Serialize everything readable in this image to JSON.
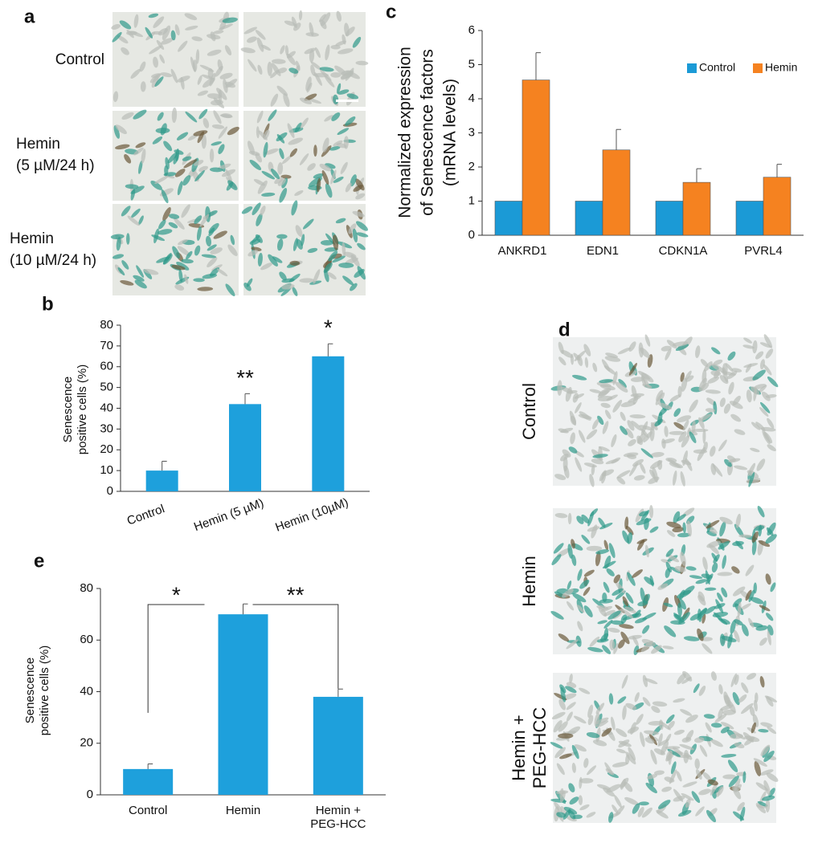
{
  "panel_labels": [
    "a",
    "b",
    "c",
    "d",
    "e"
  ],
  "panel_a": {
    "row_labels": [
      [
        "Control"
      ],
      [
        "Hemin",
        "(5 µM/24 h)"
      ],
      [
        "Hemin",
        "(10 µM/24 h)"
      ]
    ]
  },
  "panel_d": {
    "row_labels": [
      [
        "Control"
      ],
      [
        "Hemin"
      ],
      [
        "Hemin +",
        "PEG-HCC"
      ]
    ]
  },
  "chart_data": [
    {
      "type": "bar",
      "ylabel": [
        "Senescence",
        "positive cells (%)"
      ],
      "categories": [
        [
          "Control"
        ],
        [
          "Hemin (5 µM)"
        ],
        [
          "Hemin (10µM)"
        ]
      ],
      "series": [
        {
          "color": "#1ea0dc",
          "values": [
            10,
            42,
            65
          ],
          "errors": [
            4.5,
            5,
            6
          ],
          "value_annotations": [
            null,
            "**",
            "*"
          ]
        }
      ],
      "ylim": [
        0,
        80
      ],
      "yticks": [
        0,
        10,
        20,
        30,
        40,
        50,
        60,
        70,
        80
      ]
    },
    {
      "type": "bar",
      "ylabel": [
        "Normalized expression",
        "of Senescence factors",
        "(mRNA levels)"
      ],
      "categories": [
        [
          "ANKRD1"
        ],
        [
          "EDN1"
        ],
        [
          "CDKN1A"
        ],
        [
          "PVRL4"
        ]
      ],
      "series": [
        {
          "name": "Control",
          "color": "#1b9ad6",
          "values": [
            1,
            1,
            1,
            1
          ]
        },
        {
          "name": "Hemin",
          "color": "#f58220",
          "values": [
            4.55,
            2.5,
            1.55,
            1.7
          ],
          "errors": [
            0.8,
            0.6,
            0.4,
            0.38
          ]
        }
      ],
      "ylim": [
        0,
        6
      ],
      "yticks": [
        0,
        1,
        2,
        3,
        4,
        5,
        6
      ],
      "legend": "top-right"
    },
    {
      "type": "bar",
      "ylabel": [
        "Senescence",
        "positive cells (%)"
      ],
      "categories": [
        [
          "Control"
        ],
        [
          "Hemin"
        ],
        [
          "Hemin +",
          "PEG-HCC"
        ]
      ],
      "series": [
        {
          "color": "#1ea0dc",
          "values": [
            10,
            70,
            38
          ],
          "errors": [
            2,
            4,
            3
          ]
        }
      ],
      "ylim": [
        0,
        80
      ],
      "yticks": [
        0,
        20,
        40,
        60,
        80
      ],
      "significance": [
        "*",
        "**"
      ]
    }
  ]
}
